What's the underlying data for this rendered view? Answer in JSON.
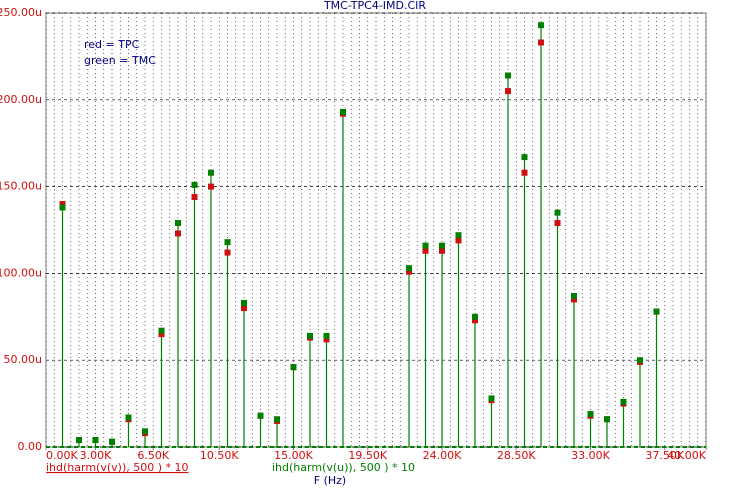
{
  "chart_data": {
    "type": "stem",
    "title": "TMC-TPC4-IMD.CIR",
    "annotations": [
      "red = TPC",
      "green = TMC"
    ],
    "x_label": "F (Hz)",
    "x": [
      1,
      2,
      3,
      4,
      5,
      6,
      7,
      8,
      9,
      10,
      11,
      12,
      13,
      14,
      15,
      16,
      17,
      18,
      19,
      20,
      21,
      22,
      23,
      24,
      25,
      26,
      27,
      28,
      29,
      30,
      31,
      32,
      33,
      34,
      35,
      36,
      37,
      38,
      39
    ],
    "series": [
      {
        "name": "ihd(harm(v(v)), 500 ) * 10",
        "color": "#d01010",
        "values": [
          140,
          4,
          4,
          3,
          16,
          8,
          65,
          123,
          144,
          150,
          112,
          80,
          18,
          15,
          46,
          63,
          62,
          192,
          null,
          null,
          null,
          101,
          113,
          113,
          119,
          73,
          27,
          205,
          158,
          233,
          129,
          85,
          18,
          16,
          25,
          49,
          78,
          null,
          null
        ]
      },
      {
        "name": "ihd(harm(v(u)), 500 ) * 10",
        "color": "#008000",
        "values": [
          138,
          4,
          4,
          3,
          17,
          9,
          67,
          129,
          151,
          158,
          118,
          83,
          18,
          16,
          46,
          64,
          64,
          193,
          null,
          null,
          null,
          103,
          116,
          116,
          122,
          75,
          28,
          214,
          167,
          243,
          135,
          87,
          19,
          16,
          26,
          50,
          78,
          null,
          null
        ]
      }
    ],
    "xlim": [
      0,
      40
    ],
    "xticks": [
      {
        "value": 0,
        "label": "0.00K"
      },
      {
        "value": 3,
        "label": "3.00K"
      },
      {
        "value": 6.5,
        "label": "6.50K"
      },
      {
        "value": 10.5,
        "label": "10.50K"
      },
      {
        "value": 15,
        "label": "15.00K"
      },
      {
        "value": 19.5,
        "label": "19.50K"
      },
      {
        "value": 24,
        "label": "24.00K"
      },
      {
        "value": 28.5,
        "label": "28.50K"
      },
      {
        "value": 33,
        "label": "33.00K"
      },
      {
        "value": 37.5,
        "label": "37.50K"
      },
      {
        "value": 40,
        "label": "40.00K"
      }
    ],
    "ylim": [
      0,
      250
    ],
    "yticks": [
      {
        "value": 0,
        "label": "0.00"
      },
      {
        "value": 50,
        "label": "50.00u"
      },
      {
        "value": 100,
        "label": "100.00u"
      },
      {
        "value": 150,
        "label": "150.00u"
      },
      {
        "value": 200,
        "label": "200.00u"
      },
      {
        "value": 250,
        "label": "250.00u"
      }
    ],
    "grid": true
  }
}
